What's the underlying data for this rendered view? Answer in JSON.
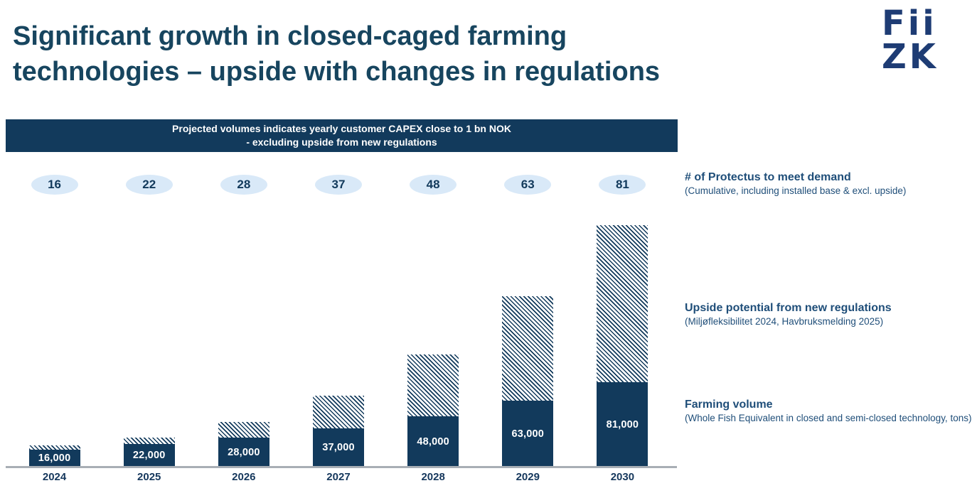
{
  "header": {
    "title_lines": [
      "Significant growth in closed-caged farming",
      "technologies – upside with changes in regulations"
    ],
    "logo_lines": [
      "Fii",
      "ZK"
    ]
  },
  "banner": {
    "line1": "Projected volumes indicates yearly customer CAPEX close to 1 bn NOK",
    "line2": "- excluding upside from new regulations"
  },
  "annotations": [
    {
      "heading": "# of Protectus to meet demand",
      "sub": "(Cumulative, including installed base & excl. upside)"
    },
    {
      "heading": "Upside potential from new regulations",
      "sub": "(Miljøfleksibilitet 2024, Havbruksmelding 2025)"
    },
    {
      "heading": "Farming volume",
      "sub": "(Whole Fish Equivalent in closed and semi-closed technology, tons)"
    }
  ],
  "chart_data": {
    "type": "bar",
    "stacked": true,
    "title": "Projected volumes indicates yearly customer CAPEX close to 1 bn NOK - excluding upside from new regulations",
    "categories": [
      "2024",
      "2025",
      "2026",
      "2027",
      "2028",
      "2029",
      "2030"
    ],
    "series": [
      {
        "name": "Farming volume (Whole Fish Equivalent in closed and semi-closed technology, tons)",
        "style": "solid-navy",
        "values": [
          16000,
          22000,
          28000,
          37000,
          48000,
          63000,
          81000
        ],
        "data_labels": [
          "16,000",
          "22,000",
          "28,000",
          "37,000",
          "48,000",
          "63,000",
          "81,000"
        ]
      },
      {
        "name": "Upside potential from new regulations (Miljøfleksibilitet 2024, Havbruksmelding 2025)",
        "style": "diagonal-hatch",
        "values_estimated": [
          4000,
          6000,
          15000,
          31000,
          59000,
          100000,
          150000
        ],
        "note": "upside segment values are not labeled in the chart; estimated from bar heights"
      }
    ],
    "protectus_counts": {
      "label": "# of Protectus to meet demand",
      "values": [
        "16",
        "22",
        "28",
        "37",
        "48",
        "63",
        "81"
      ]
    },
    "xlabel": "",
    "ylabel": "",
    "grid": false,
    "legend_position": "right",
    "ylim": [
      0,
      240000
    ]
  },
  "colors": {
    "navy": "#123A5C",
    "title_text": "#17455F",
    "logo_blue": "#1E3C74",
    "badge_fill": "#D9E9F8",
    "badge_text": "#123A5C",
    "annotation_text": "#1F4E79",
    "axis_grey": "#A8AEB5",
    "banner_bg": "#123A5C",
    "banner_text": "#FFFFFF",
    "bar_label_text": "#FFFFFF",
    "year_text": "#15375C"
  }
}
